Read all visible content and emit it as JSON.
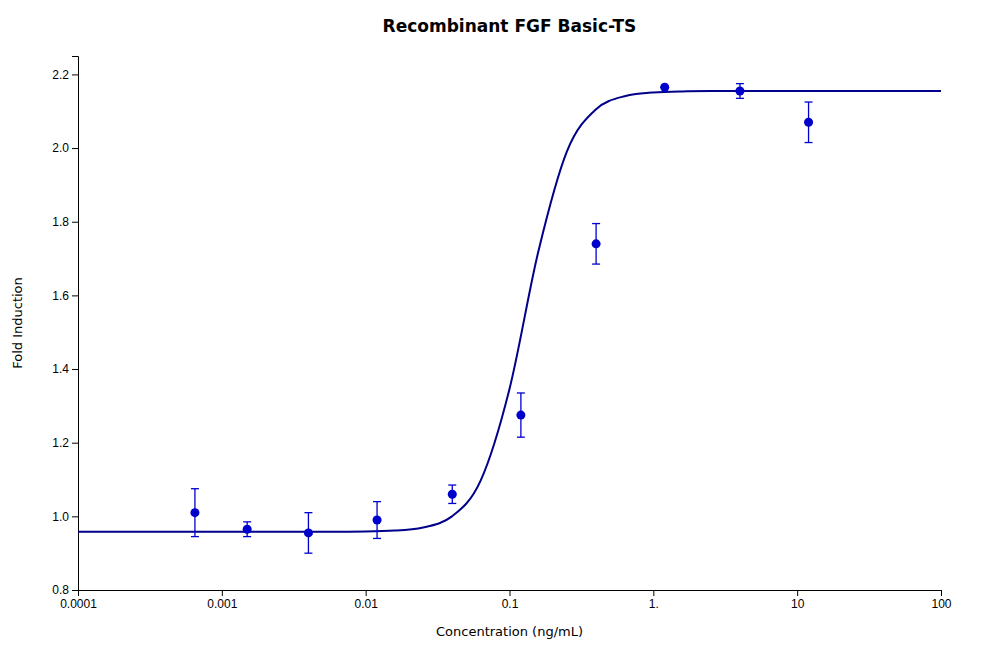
{
  "chart_data": {
    "type": "scatter",
    "title": "Recombinant FGF Basic-TS",
    "x_label": "Concentration (ng/mL)",
    "y_label": "Fold Induction",
    "log": "x",
    "grid": false,
    "xlim": [
      0.0001,
      100
    ],
    "ylim": [
      0.8,
      2.25
    ],
    "xticks": [
      0.0001,
      0.001,
      0.01,
      0.1,
      {
        "value": 1,
        "label": "1."
      },
      10,
      100
    ],
    "yticks": [
      0.8,
      {
        "value": 1.0,
        "label": "1.0"
      },
      1.2,
      1.4,
      1.6,
      1.8,
      {
        "value": 2.0,
        "label": "2.0"
      },
      2.2
    ],
    "series": [
      {
        "type": "line",
        "color": "#00008B",
        "line_style": "solid",
        "x": [
          0.0001,
          0.0001585,
          0.0002512,
          0.0003981,
          0.000631,
          0.001,
          0.001585,
          0.002512,
          0.003981,
          0.00631,
          0.01,
          0.01585,
          0.02512,
          0.03981,
          0.0631,
          0.1,
          0.1585,
          0.2512,
          0.3981,
          0.631,
          1,
          1.585,
          2.512,
          3.981,
          6.31,
          10,
          15.85,
          25.12,
          39.81,
          63.1,
          100
        ],
        "values": [
          0.958,
          0.958,
          0.958,
          0.958,
          0.958,
          0.958,
          0.958,
          0.958,
          0.9581,
          0.9583,
          0.9589,
          0.9613,
          0.9699,
          1.0,
          1.0977,
          1.346,
          1.7184,
          1.9916,
          2.105,
          2.1408,
          2.1511,
          2.1539,
          2.1547,
          2.1549,
          2.155,
          2.155,
          2.155,
          2.155,
          2.155,
          2.155,
          2.155
        ]
      },
      {
        "type": "scatter",
        "color": "#0000CD",
        "marker": "circle",
        "x": [
          0.00065,
          0.0015,
          0.004,
          0.012,
          0.04,
          0.12,
          0.4,
          1.2,
          4.0,
          12.0
        ],
        "values": [
          1.01,
          0.965,
          0.955,
          0.99,
          1.06,
          1.275,
          1.74,
          2.165,
          2.155,
          2.07
        ],
        "errors": [
          0.065,
          0.02,
          0.055,
          0.05,
          0.025,
          0.06,
          0.055,
          0.0,
          0.02,
          0.055
        ]
      }
    ]
  }
}
